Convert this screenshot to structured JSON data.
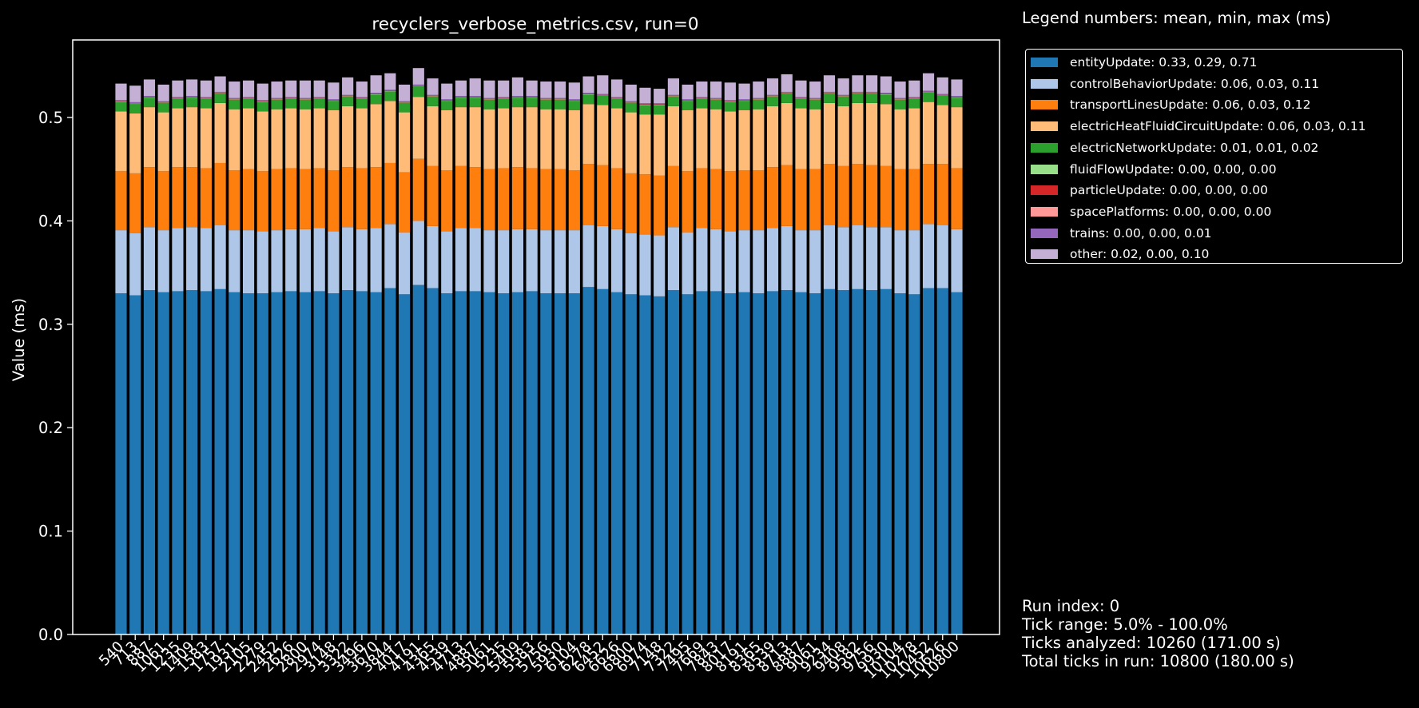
{
  "legend_header": "Legend numbers: mean, min, max (ms)",
  "run_info": {
    "run_index": "Run index: 0",
    "tick_range": "Tick range: 5.0% - 100.0%",
    "ticks_analyzed": "Ticks analyzed: 10260 (171.00 s)",
    "total_ticks": "Total ticks in run: 10800 (180.00 s)"
  },
  "chart_data": {
    "type": "bar",
    "stacked": true,
    "title": "recyclers_verbose_metrics.csv, run=0",
    "xlabel": "",
    "ylabel": "Value (ms)",
    "ylim": [
      0,
      0.575
    ],
    "yticks": [
      "0.0",
      "0.1",
      "0.2",
      "0.3",
      "0.4",
      "0.5"
    ],
    "legend_position": "outside-right-top",
    "grid": false,
    "categories": [
      "540",
      "713",
      "887",
      "1061",
      "1235",
      "1409",
      "1583",
      "1757",
      "1931",
      "2105",
      "2279",
      "2452",
      "2626",
      "2800",
      "2974",
      "3148",
      "3322",
      "3496",
      "3670",
      "3844",
      "4017",
      "4191",
      "4365",
      "4539",
      "4713",
      "4887",
      "5061",
      "5235",
      "5409",
      "5583",
      "5756",
      "5930",
      "6104",
      "6278",
      "6452",
      "6626",
      "6800",
      "6974",
      "7148",
      "7322",
      "7495",
      "7669",
      "7843",
      "8017",
      "8191",
      "8365",
      "8539",
      "8713",
      "8887",
      "9061",
      "9234",
      "9408",
      "9582",
      "9756",
      "9930",
      "10104",
      "10278",
      "10452",
      "10626",
      "10800"
    ],
    "series": [
      {
        "name": "entityUpdate: 0.33, 0.29, 0.71",
        "color": "#1f77b4",
        "values": [
          0.33,
          0.328,
          0.333,
          0.331,
          0.332,
          0.333,
          0.332,
          0.334,
          0.331,
          0.33,
          0.33,
          0.331,
          0.332,
          0.331,
          0.332,
          0.33,
          0.333,
          0.332,
          0.331,
          0.335,
          0.329,
          0.338,
          0.335,
          0.33,
          0.332,
          0.332,
          0.331,
          0.33,
          0.331,
          0.332,
          0.33,
          0.33,
          0.33,
          0.336,
          0.334,
          0.331,
          0.329,
          0.328,
          0.327,
          0.333,
          0.329,
          0.332,
          0.332,
          0.33,
          0.331,
          0.33,
          0.332,
          0.333,
          0.331,
          0.33,
          0.334,
          0.333,
          0.334,
          0.333,
          0.334,
          0.33,
          0.329,
          0.335,
          0.335,
          0.331
        ]
      },
      {
        "name": "controlBehaviorUpdate: 0.06, 0.03, 0.11",
        "color": "#aec7e8",
        "values": [
          0.061,
          0.06,
          0.061,
          0.06,
          0.061,
          0.061,
          0.061,
          0.062,
          0.06,
          0.061,
          0.06,
          0.06,
          0.06,
          0.061,
          0.061,
          0.06,
          0.061,
          0.06,
          0.062,
          0.062,
          0.06,
          0.062,
          0.06,
          0.06,
          0.061,
          0.061,
          0.06,
          0.061,
          0.061,
          0.06,
          0.061,
          0.061,
          0.061,
          0.06,
          0.061,
          0.061,
          0.059,
          0.059,
          0.059,
          0.061,
          0.06,
          0.061,
          0.06,
          0.06,
          0.06,
          0.061,
          0.061,
          0.062,
          0.06,
          0.061,
          0.062,
          0.061,
          0.062,
          0.061,
          0.06,
          0.061,
          0.062,
          0.062,
          0.061,
          0.061
        ]
      },
      {
        "name": "transportLinesUpdate: 0.06, 0.03, 0.12",
        "color": "#ff7f0e",
        "values": [
          0.057,
          0.058,
          0.058,
          0.057,
          0.059,
          0.058,
          0.058,
          0.06,
          0.058,
          0.059,
          0.058,
          0.059,
          0.059,
          0.058,
          0.058,
          0.059,
          0.058,
          0.059,
          0.059,
          0.059,
          0.058,
          0.06,
          0.058,
          0.059,
          0.06,
          0.059,
          0.059,
          0.06,
          0.06,
          0.059,
          0.059,
          0.059,
          0.058,
          0.059,
          0.059,
          0.059,
          0.058,
          0.058,
          0.058,
          0.059,
          0.059,
          0.058,
          0.058,
          0.058,
          0.058,
          0.058,
          0.059,
          0.059,
          0.059,
          0.059,
          0.059,
          0.059,
          0.059,
          0.06,
          0.059,
          0.059,
          0.059,
          0.058,
          0.059,
          0.059
        ]
      },
      {
        "name": "electricHeatFluidCircuitUpdate: 0.06, 0.03, 0.11",
        "color": "#ffbb78",
        "values": [
          0.058,
          0.058,
          0.058,
          0.057,
          0.057,
          0.058,
          0.058,
          0.058,
          0.059,
          0.059,
          0.058,
          0.058,
          0.058,
          0.058,
          0.058,
          0.058,
          0.059,
          0.058,
          0.061,
          0.06,
          0.058,
          0.06,
          0.058,
          0.058,
          0.057,
          0.058,
          0.058,
          0.058,
          0.058,
          0.059,
          0.058,
          0.058,
          0.058,
          0.058,
          0.058,
          0.058,
          0.059,
          0.058,
          0.059,
          0.058,
          0.059,
          0.058,
          0.058,
          0.058,
          0.058,
          0.059,
          0.059,
          0.06,
          0.059,
          0.058,
          0.059,
          0.058,
          0.059,
          0.06,
          0.06,
          0.058,
          0.059,
          0.06,
          0.057,
          0.059
        ]
      },
      {
        "name": "electricNetworkUpdate: 0.01, 0.01, 0.02",
        "color": "#2ca02c",
        "values": [
          0.009,
          0.009,
          0.009,
          0.009,
          0.009,
          0.009,
          0.009,
          0.009,
          0.009,
          0.009,
          0.009,
          0.009,
          0.009,
          0.009,
          0.009,
          0.009,
          0.009,
          0.009,
          0.009,
          0.009,
          0.009,
          0.01,
          0.009,
          0.009,
          0.009,
          0.009,
          0.009,
          0.009,
          0.009,
          0.009,
          0.009,
          0.009,
          0.009,
          0.009,
          0.009,
          0.009,
          0.009,
          0.009,
          0.009,
          0.009,
          0.009,
          0.009,
          0.009,
          0.009,
          0.009,
          0.009,
          0.009,
          0.009,
          0.009,
          0.009,
          0.009,
          0.009,
          0.009,
          0.009,
          0.009,
          0.009,
          0.009,
          0.009,
          0.009,
          0.009
        ]
      },
      {
        "name": "fluidFlowUpdate: 0.00, 0.00, 0.00",
        "color": "#98df8a",
        "values": [
          0.0005,
          0.0005,
          0.0005,
          0.0005,
          0.0005,
          0.0005,
          0.0005,
          0.0005,
          0.0005,
          0.0005,
          0.0005,
          0.0005,
          0.0005,
          0.0005,
          0.0005,
          0.0005,
          0.0005,
          0.0005,
          0.0005,
          0.0005,
          0.0005,
          0.0005,
          0.0005,
          0.0005,
          0.0005,
          0.0005,
          0.0005,
          0.0005,
          0.0005,
          0.0005,
          0.0005,
          0.0005,
          0.0005,
          0.0005,
          0.0005,
          0.0005,
          0.0005,
          0.0005,
          0.0005,
          0.0005,
          0.0005,
          0.0005,
          0.0005,
          0.0005,
          0.0005,
          0.0005,
          0.0005,
          0.0005,
          0.0005,
          0.0005,
          0.0005,
          0.0005,
          0.0005,
          0.0005,
          0.0005,
          0.0005,
          0.0005,
          0.0005,
          0.0005,
          0.0005
        ]
      },
      {
        "name": "particleUpdate: 0.00, 0.00, 0.00",
        "color": "#d62728",
        "values": [
          0.0003,
          0.0003,
          0.0003,
          0.0003,
          0.0003,
          0.0003,
          0.0003,
          0.0003,
          0.0003,
          0.0003,
          0.0003,
          0.0003,
          0.0003,
          0.0003,
          0.0003,
          0.0003,
          0.0003,
          0.0003,
          0.0003,
          0.0003,
          0.0003,
          0.0003,
          0.0003,
          0.0003,
          0.0003,
          0.0003,
          0.0003,
          0.0003,
          0.0003,
          0.0003,
          0.0003,
          0.0003,
          0.0003,
          0.0003,
          0.0003,
          0.0003,
          0.0003,
          0.0003,
          0.0003,
          0.0003,
          0.0003,
          0.0003,
          0.0003,
          0.0003,
          0.0003,
          0.0003,
          0.0003,
          0.0003,
          0.0003,
          0.0003,
          0.0003,
          0.0003,
          0.0003,
          0.0003,
          0.0003,
          0.0003,
          0.0003,
          0.0003,
          0.0003,
          0.0003
        ]
      },
      {
        "name": "spacePlatforms: 0.00, 0.00, 0.00",
        "color": "#ff9896",
        "values": [
          0.0002,
          0.0002,
          0.0002,
          0.0002,
          0.0002,
          0.0002,
          0.0002,
          0.0002,
          0.0002,
          0.0002,
          0.0002,
          0.0002,
          0.0002,
          0.0002,
          0.0002,
          0.0002,
          0.0002,
          0.0002,
          0.0002,
          0.0002,
          0.0002,
          0.0002,
          0.0002,
          0.0002,
          0.0002,
          0.0002,
          0.0002,
          0.0002,
          0.0002,
          0.0002,
          0.0002,
          0.0002,
          0.0002,
          0.0002,
          0.0002,
          0.0002,
          0.0002,
          0.0002,
          0.0002,
          0.0002,
          0.0002,
          0.0002,
          0.0002,
          0.0002,
          0.0002,
          0.0002,
          0.0002,
          0.0002,
          0.0002,
          0.0002,
          0.0002,
          0.0002,
          0.0002,
          0.0002,
          0.0002,
          0.0002,
          0.0002,
          0.0002,
          0.0002,
          0.0002
        ]
      },
      {
        "name": "trains: 0.00, 0.00, 0.01",
        "color": "#9467bd",
        "values": [
          0.0008,
          0.0008,
          0.0008,
          0.0008,
          0.0008,
          0.0008,
          0.0008,
          0.0008,
          0.0008,
          0.0008,
          0.0008,
          0.0008,
          0.0008,
          0.0008,
          0.0008,
          0.0008,
          0.0008,
          0.0008,
          0.0008,
          0.0008,
          0.0008,
          0.0008,
          0.0008,
          0.0008,
          0.0008,
          0.0008,
          0.0008,
          0.0008,
          0.0008,
          0.0008,
          0.0008,
          0.0008,
          0.0008,
          0.0008,
          0.0008,
          0.0008,
          0.0008,
          0.0008,
          0.0008,
          0.0008,
          0.0008,
          0.0008,
          0.0008,
          0.0008,
          0.0008,
          0.0008,
          0.0008,
          0.0008,
          0.0008,
          0.0008,
          0.0008,
          0.0008,
          0.0008,
          0.0008,
          0.0008,
          0.0008,
          0.0008,
          0.0008,
          0.0008,
          0.0008
        ]
      },
      {
        "name": "other: 0.02, 0.00, 0.10",
        "color": "#c5b0d5",
        "values": [
          0.016,
          0.016,
          0.016,
          0.016,
          0.016,
          0.016,
          0.016,
          0.015,
          0.016,
          0.016,
          0.016,
          0.016,
          0.016,
          0.017,
          0.016,
          0.016,
          0.017,
          0.015,
          0.017,
          0.016,
          0.016,
          0.016,
          0.016,
          0.015,
          0.015,
          0.017,
          0.017,
          0.016,
          0.018,
          0.015,
          0.016,
          0.016,
          0.016,
          0.016,
          0.018,
          0.017,
          0.016,
          0.015,
          0.014,
          0.016,
          0.014,
          0.015,
          0.016,
          0.017,
          0.015,
          0.016,
          0.016,
          0.017,
          0.016,
          0.016,
          0.016,
          0.016,
          0.016,
          0.016,
          0.016,
          0.016,
          0.016,
          0.017,
          0.016,
          0.016
        ]
      }
    ]
  }
}
